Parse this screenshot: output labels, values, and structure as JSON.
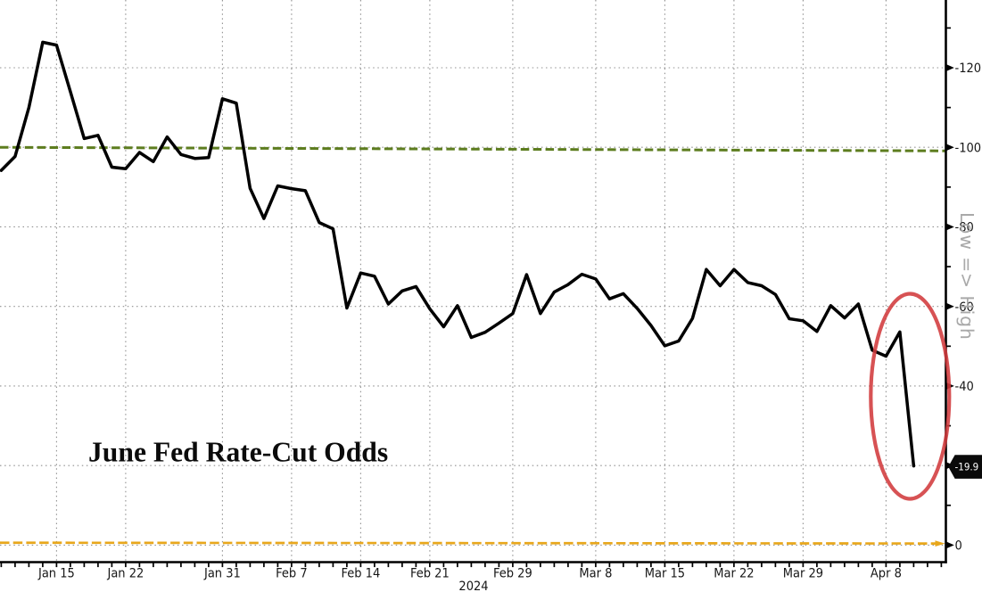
{
  "chart_data": {
    "type": "line",
    "title": "June Fed Rate-Cut Odds",
    "year_label": "2024",
    "x_axis_note": "weekday-spaced dates, 2024",
    "x": [
      "Jan 9",
      "Jan 10",
      "Jan 11",
      "Jan 12",
      "Jan 15",
      "Jan 16",
      "Jan 17",
      "Jan 18",
      "Jan 19",
      "Jan 22",
      "Jan 23",
      "Jan 24",
      "Jan 25",
      "Jan 26",
      "Jan 29",
      "Jan 30",
      "Jan 31",
      "Feb 1",
      "Feb 2",
      "Feb 5",
      "Feb 6",
      "Feb 7",
      "Feb 8",
      "Feb 9",
      "Feb 12",
      "Feb 13",
      "Feb 14",
      "Feb 15",
      "Feb 16",
      "Feb 19",
      "Feb 20",
      "Feb 21",
      "Feb 22",
      "Feb 23",
      "Feb 26",
      "Feb 27",
      "Feb 28",
      "Feb 29",
      "Mar 1",
      "Mar 4",
      "Mar 5",
      "Mar 6",
      "Mar 7",
      "Mar 8",
      "Mar 11",
      "Mar 12",
      "Mar 13",
      "Mar 14",
      "Mar 15",
      "Mar 18",
      "Mar 19",
      "Mar 20",
      "Mar 21",
      "Mar 22",
      "Mar 25",
      "Mar 26",
      "Mar 27",
      "Mar 28",
      "Mar 29",
      "Apr 1",
      "Apr 2",
      "Apr 3",
      "Apr 4",
      "Apr 5",
      "Apr 8",
      "Apr 9",
      "Apr 10"
    ],
    "series": [
      {
        "name": "June Fed rate-cut odds",
        "color": "#000000",
        "values": [
          94.2,
          97.7,
          110.0,
          126.4,
          125.7,
          114.0,
          102.2,
          103.0,
          95.0,
          94.6,
          98.7,
          96.4,
          102.6,
          98.2,
          97.2,
          97.4,
          112.2,
          111.1,
          89.7,
          82.1,
          90.3,
          89.6,
          89.1,
          81.1,
          79.5,
          59.6,
          68.4,
          67.6,
          60.6,
          63.9,
          65.0,
          59.4,
          54.9,
          60.2,
          52.2,
          53.5,
          55.8,
          58.2,
          68.0,
          58.2,
          63.6,
          65.5,
          68.1,
          66.9,
          61.9,
          63.2,
          59.5,
          55.2,
          50.1,
          51.3,
          57.0,
          69.3,
          65.2,
          69.3,
          66.0,
          65.2,
          63.0,
          56.9,
          56.4,
          53.7,
          60.2,
          57.1,
          60.6,
          49.0,
          47.5,
          53.6,
          19.9
        ]
      }
    ],
    "reference_lines": [
      {
        "name": "upper dashed reference",
        "color": "#5d7d1f",
        "value_start": 100.0,
        "value_end": 99.1
      },
      {
        "name": "lower dashed reference",
        "color": "#e8a71c",
        "value_start": 0.6,
        "value_end": 0.4
      }
    ],
    "last_value": 19.9,
    "last_value_label": "-19.9",
    "xticks": [
      "Jan 15",
      "Jan 22",
      "Jan 31",
      "Feb 7",
      "Feb 14",
      "Feb 21",
      "Feb 29",
      "Mar 8",
      "Mar 15",
      "Mar 22",
      "Mar 29",
      "Apr 8"
    ],
    "x_anchor": "Jan 15",
    "yticks": [
      0,
      20,
      40,
      60,
      80,
      100,
      120
    ],
    "ytick_labels": [
      "0",
      "-20",
      "-40",
      "-60",
      "-80",
      "-100",
      "-120"
    ],
    "ytick_hidden_by_tag": "-20",
    "yticks_minor": [
      10,
      30,
      50,
      70,
      90,
      110,
      130
    ],
    "ylim": [
      0,
      132
    ],
    "grid": "dotted",
    "legend_position": "none",
    "right_axis_label": "Low => High",
    "annotation": {
      "shape": "ellipse",
      "color": "#d23a3c",
      "around": "final drop to 19.9"
    }
  },
  "title": "June Fed Rate-Cut Odds",
  "watermark": "Low => High",
  "year_label": "2024",
  "tag": {
    "label": "-19.9",
    "bg": "#0a0a0a",
    "fg": "#ffffff"
  },
  "colors": {
    "line": "#000000",
    "grid": "#909090",
    "axis": "#000000",
    "green_dashed": "#5d7d1f",
    "orange_dashed": "#e8a71c",
    "annotation_red": "#d23a3c",
    "watermark_gray": "#a9a9a9",
    "background": "#ffffff"
  }
}
